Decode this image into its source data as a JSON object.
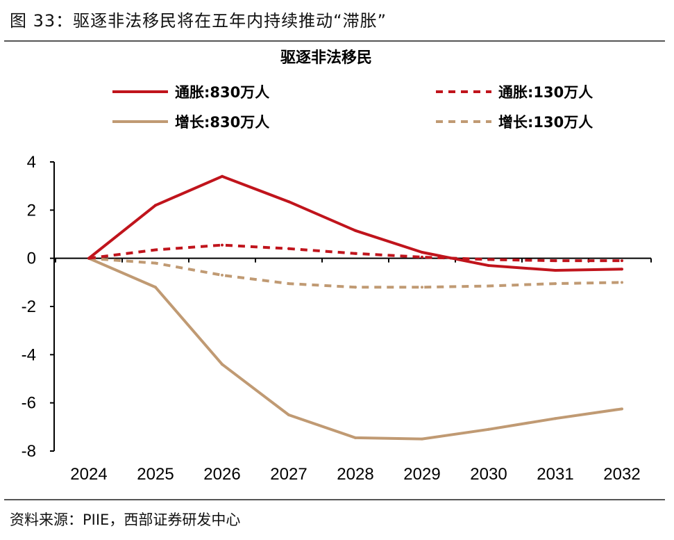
{
  "figure": {
    "title": "图 33：驱逐非法移民将在五年内持续推动“滞胀”",
    "source": "资料来源：PIIE，西部证券研发中心"
  },
  "chart_data": {
    "type": "line",
    "title": "驱逐非法移民",
    "xlabel": "",
    "ylabel": "",
    "x": [
      "2024",
      "2025",
      "2026",
      "2027",
      "2028",
      "2029",
      "2030",
      "2031",
      "2032"
    ],
    "ylim": [
      -8,
      4
    ],
    "yticks": [
      4,
      2,
      0,
      -2,
      -4,
      -6,
      -8
    ],
    "grid": false,
    "legend_placement": "top",
    "series": [
      {
        "name": "通胀:830万人",
        "color": "#C0141C",
        "dash": false,
        "values": [
          0,
          2.2,
          3.4,
          2.35,
          1.15,
          0.25,
          -0.3,
          -0.5,
          -0.45
        ]
      },
      {
        "name": "通胀:130万人",
        "color": "#C0141C",
        "dash": true,
        "values": [
          0,
          0.35,
          0.55,
          0.4,
          0.2,
          0.05,
          -0.05,
          -0.1,
          -0.1
        ]
      },
      {
        "name": "增长:830万人",
        "color": "#C09A73",
        "dash": false,
        "values": [
          0,
          -1.2,
          -4.4,
          -6.5,
          -7.45,
          -7.5,
          -7.1,
          -6.65,
          -6.25
        ]
      },
      {
        "name": "增长:130万人",
        "color": "#C09A73",
        "dash": true,
        "values": [
          0,
          -0.2,
          -0.7,
          -1.05,
          -1.2,
          -1.2,
          -1.15,
          -1.05,
          -1.0
        ]
      }
    ]
  }
}
